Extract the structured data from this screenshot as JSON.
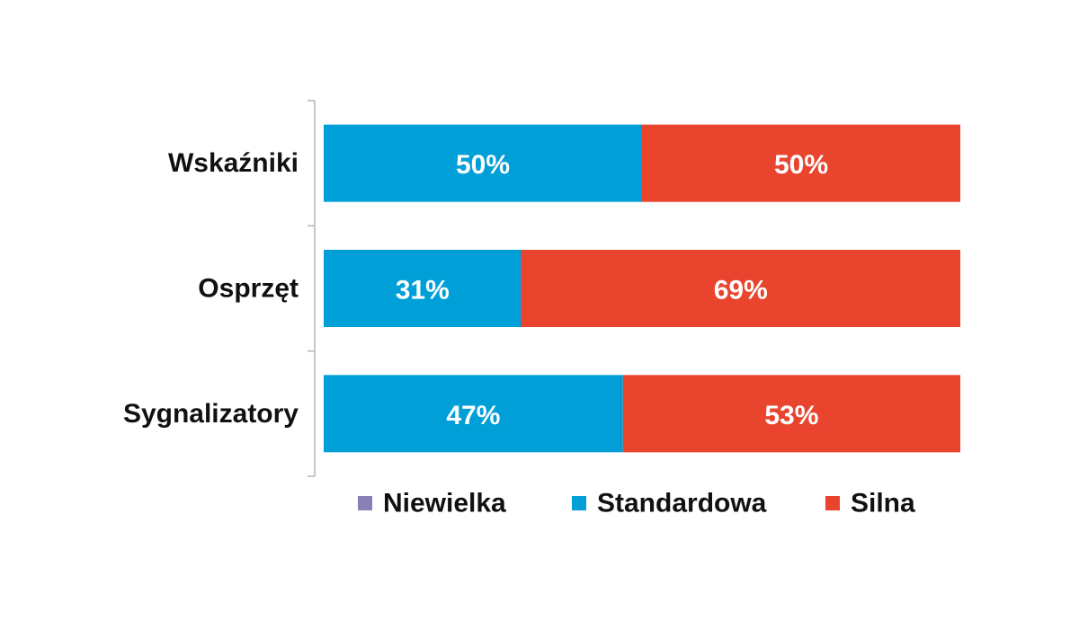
{
  "chart_data": {
    "type": "bar",
    "orientation": "horizontal",
    "stacked": true,
    "categories": [
      "Wskaźniki",
      "Osprzęt",
      "Sygnalizatory"
    ],
    "series": [
      {
        "name": "Niewielka",
        "color": "#8b7fb8",
        "values": [
          0,
          0,
          0
        ],
        "labels": [
          "",
          "",
          ""
        ]
      },
      {
        "name": "Standardowa",
        "color": "#009fd8",
        "values": [
          50,
          31,
          47
        ],
        "labels": [
          "50%",
          "31%",
          "47%"
        ]
      },
      {
        "name": "Silna",
        "color": "#e8442e",
        "values": [
          50,
          69,
          53
        ],
        "labels": [
          "50%",
          "69%",
          "53%"
        ]
      }
    ],
    "xlim": [
      0,
      100
    ],
    "grid": false,
    "legend_position": "bottom"
  }
}
